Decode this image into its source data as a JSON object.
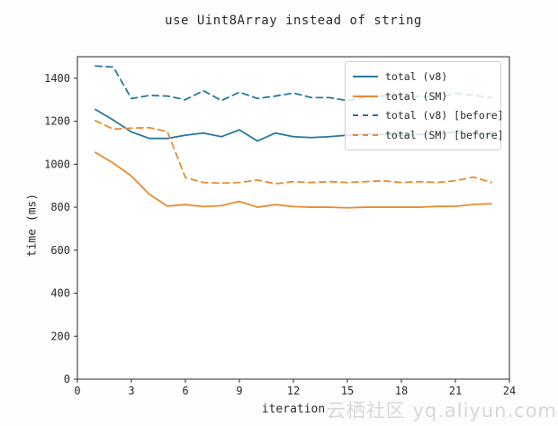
{
  "figure": {
    "watermark": "云栖社区 yq.aliyun.com"
  },
  "chart_data": {
    "type": "line",
    "title": "use Uint8Array instead of string",
    "xlabel": "iteration",
    "ylabel": "time (ms)",
    "xlim": [
      0,
      24
    ],
    "ylim": [
      0,
      1500
    ],
    "x_ticks": [
      0,
      3,
      6,
      9,
      12,
      15,
      18,
      21,
      24
    ],
    "y_ticks": [
      0,
      200,
      400,
      600,
      800,
      1000,
      1200,
      1400
    ],
    "grid": false,
    "legend_position": "upper right",
    "axis_color": "#2b2b2b",
    "x": [
      1,
      2,
      3,
      4,
      5,
      6,
      7,
      8,
      9,
      10,
      11,
      12,
      13,
      14,
      15,
      16,
      17,
      18,
      19,
      20,
      21,
      22,
      23
    ],
    "series": [
      {
        "name": "total (v8)",
        "style": "solid",
        "color": "#26799c",
        "values": [
          1255,
          1205,
          1150,
          1120,
          1120,
          1135,
          1145,
          1128,
          1160,
          1108,
          1145,
          1128,
          1124,
          1128,
          1135,
          1140,
          1138,
          1135,
          1138,
          1140,
          1150,
          1142,
          1138
        ]
      },
      {
        "name": "total (SM)",
        "style": "solid",
        "color": "#e88b32",
        "values": [
          1055,
          1005,
          945,
          860,
          805,
          812,
          803,
          807,
          827,
          800,
          812,
          803,
          800,
          800,
          797,
          800,
          800,
          800,
          800,
          804,
          804,
          813,
          816
        ]
      },
      {
        "name": "total (v8) [before]",
        "style": "dashed",
        "color": "#26799c",
        "values": [
          1457,
          1452,
          1305,
          1320,
          1317,
          1300,
          1342,
          1296,
          1335,
          1306,
          1317,
          1331,
          1310,
          1310,
          1296,
          1310,
          1318,
          1312,
          1316,
          1310,
          1330,
          1320,
          1310
        ]
      },
      {
        "name": "total (SM) [before]",
        "style": "dashed",
        "color": "#e88b32",
        "values": [
          1203,
          1163,
          1168,
          1170,
          1152,
          938,
          915,
          912,
          915,
          926,
          909,
          919,
          915,
          919,
          915,
          919,
          923,
          915,
          919,
          915,
          923,
          940,
          915
        ]
      }
    ]
  }
}
